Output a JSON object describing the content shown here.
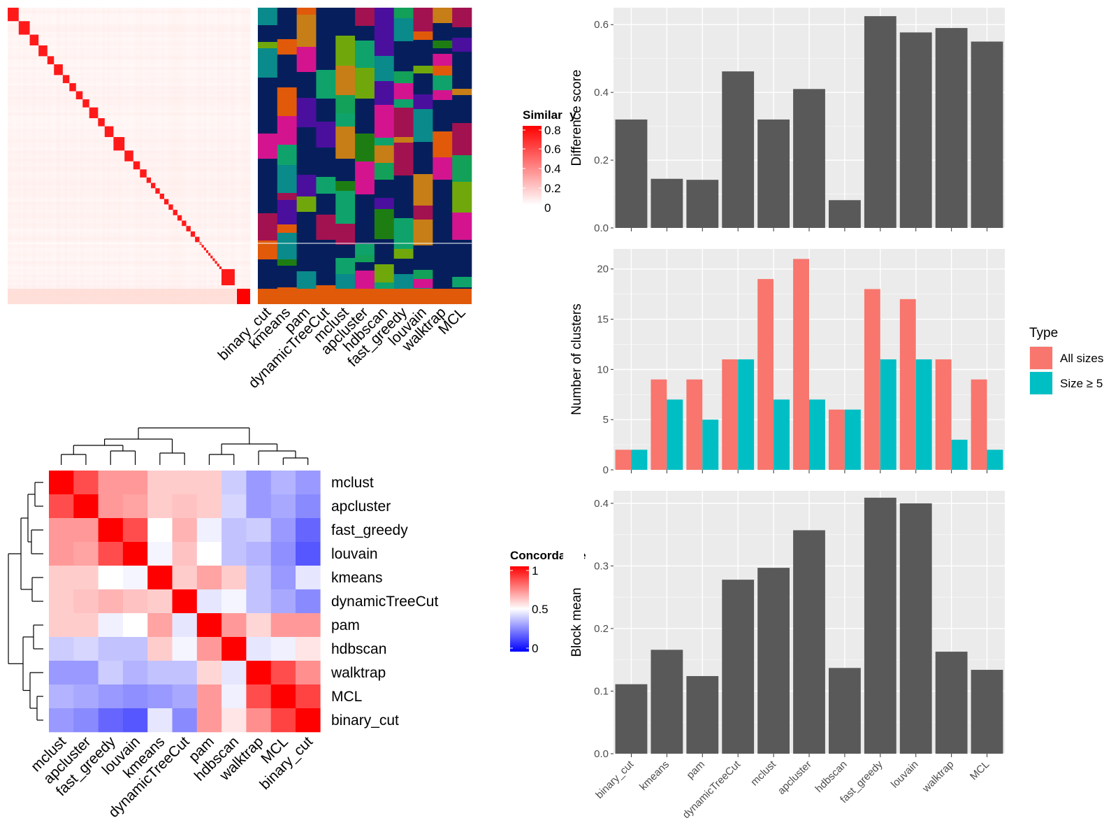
{
  "methods_order_bar": [
    "binary_cut",
    "kmeans",
    "pam",
    "dynamicTreeCut",
    "mclust",
    "apcluster",
    "hdbscan",
    "fast_greedy",
    "louvain",
    "walktrap",
    "MCL"
  ],
  "similarity_legend": {
    "title": "Similarity",
    "ticks": [
      "0.8",
      "0.6",
      "0.4",
      "0.2",
      "0"
    ],
    "colors": [
      "#ff0000",
      "#ffffff"
    ]
  },
  "concordance_legend": {
    "title": "Concordance",
    "ticks": [
      "1",
      "0.5",
      "0"
    ],
    "colors": [
      "#ff0000",
      "#ffffff",
      "#0000ff"
    ]
  },
  "type_legend": {
    "title": "Type",
    "items": [
      {
        "label": "All sizes",
        "color": "#f8766d"
      },
      {
        "label": "Size ≥ 5",
        "color": "#00bfc4"
      }
    ]
  },
  "chart_data": [
    {
      "type": "heatmap",
      "name": "similarity-heatmap",
      "n_terms": 110,
      "colors": [
        "#ffffff",
        "#ff0000"
      ],
      "value_range": [
        0,
        0.8
      ],
      "legend": "Similarity"
    },
    {
      "type": "heatmap",
      "name": "cluster-membership",
      "columns": [
        "binary_cut",
        "kmeans",
        "pam",
        "dynamicTreeCut",
        "mclust",
        "apcluster",
        "hdbscan",
        "fast_greedy",
        "louvain",
        "walktrap",
        "MCL"
      ],
      "palette": [
        "#0fa36b",
        "#1e7d12",
        "#0a8a8a",
        "#a21251",
        "#d4148f",
        "#70a80c",
        "#c77e16",
        "#4b0f9e",
        "#e05a0a",
        "#13a058",
        "#061f5c"
      ],
      "background": "#061f5c",
      "bottom_band": "#e05a0a"
    },
    {
      "type": "bar",
      "categories": [
        "binary_cut",
        "kmeans",
        "pam",
        "dynamicTreeCut",
        "mclust",
        "apcluster",
        "hdbscan",
        "fast_greedy",
        "louvain",
        "walktrap",
        "MCL"
      ],
      "values": [
        0.32,
        0.145,
        0.142,
        0.462,
        0.32,
        0.41,
        0.082,
        0.625,
        0.577,
        0.59,
        0.55
      ],
      "ylabel": "Difference score",
      "ylim": [
        0,
        0.65
      ],
      "yticks": [
        0.0,
        0.2,
        0.4,
        0.6
      ],
      "ytick_labels": [
        "0.0",
        "0.2",
        "0.4",
        "0.6"
      ],
      "color": "#595959"
    },
    {
      "type": "bar",
      "categories": [
        "binary_cut",
        "kmeans",
        "pam",
        "dynamicTreeCut",
        "mclust",
        "apcluster",
        "hdbscan",
        "fast_greedy",
        "louvain",
        "walktrap",
        "MCL"
      ],
      "series": [
        {
          "name": "All sizes",
          "values": [
            2,
            9,
            9,
            11,
            19,
            21,
            6,
            18,
            17,
            11,
            9
          ],
          "color": "#f8766d"
        },
        {
          "name": "Size ≥ 5",
          "values": [
            2,
            7,
            5,
            11,
            7,
            7,
            6,
            11,
            11,
            3,
            2
          ],
          "color": "#00bfc4"
        }
      ],
      "ylabel": "Number of clusters",
      "ylim": [
        0,
        22
      ],
      "yticks": [
        0,
        5,
        10,
        15,
        20
      ],
      "ytick_labels": [
        "0",
        "5",
        "10",
        "15",
        "20"
      ]
    },
    {
      "type": "bar",
      "categories": [
        "binary_cut",
        "kmeans",
        "pam",
        "dynamicTreeCut",
        "mclust",
        "apcluster",
        "hdbscan",
        "fast_greedy",
        "louvain",
        "walktrap",
        "MCL"
      ],
      "values": [
        0.111,
        0.166,
        0.124,
        0.278,
        0.297,
        0.357,
        0.137,
        0.409,
        0.4,
        0.163,
        0.134
      ],
      "ylabel": "Block mean",
      "ylim": [
        0,
        0.42
      ],
      "yticks": [
        0.0,
        0.1,
        0.2,
        0.3,
        0.4
      ],
      "ytick_labels": [
        "0.0",
        "0.1",
        "0.2",
        "0.3",
        "0.4"
      ],
      "color": "#595959"
    },
    {
      "type": "heatmap",
      "name": "concordance-heatmap",
      "labels": [
        "mclust",
        "apcluster",
        "fast_greedy",
        "louvain",
        "kmeans",
        "dynamicTreeCut",
        "pam",
        "hdbscan",
        "walktrap",
        "MCL",
        "binary_cut"
      ],
      "values": [
        [
          1.0,
          0.85,
          0.7,
          0.7,
          0.6,
          0.6,
          0.6,
          0.4,
          0.3,
          0.35,
          0.3
        ],
        [
          0.85,
          1.0,
          0.7,
          0.68,
          0.6,
          0.62,
          0.6,
          0.42,
          0.3,
          0.33,
          0.27
        ],
        [
          0.7,
          0.7,
          1.0,
          0.85,
          0.5,
          0.65,
          0.47,
          0.38,
          0.4,
          0.3,
          0.2
        ],
        [
          0.7,
          0.68,
          0.85,
          1.0,
          0.48,
          0.62,
          0.5,
          0.38,
          0.35,
          0.28,
          0.17
        ],
        [
          0.6,
          0.6,
          0.5,
          0.48,
          1.0,
          0.6,
          0.68,
          0.6,
          0.38,
          0.3,
          0.45
        ],
        [
          0.6,
          0.62,
          0.65,
          0.62,
          0.6,
          1.0,
          0.45,
          0.48,
          0.38,
          0.33,
          0.27
        ],
        [
          0.6,
          0.6,
          0.47,
          0.5,
          0.68,
          0.45,
          1.0,
          0.7,
          0.58,
          0.7,
          0.7
        ],
        [
          0.4,
          0.42,
          0.38,
          0.38,
          0.6,
          0.48,
          0.7,
          1.0,
          0.45,
          0.47,
          0.55
        ],
        [
          0.3,
          0.3,
          0.4,
          0.35,
          0.38,
          0.38,
          0.58,
          0.45,
          1.0,
          0.85,
          0.72
        ],
        [
          0.35,
          0.33,
          0.3,
          0.28,
          0.3,
          0.33,
          0.7,
          0.47,
          0.85,
          1.0,
          0.87
        ],
        [
          0.3,
          0.27,
          0.2,
          0.17,
          0.45,
          0.27,
          0.7,
          0.55,
          0.72,
          0.87,
          1.0
        ]
      ],
      "legend": "Concordance",
      "value_range": [
        0,
        1
      ]
    }
  ]
}
